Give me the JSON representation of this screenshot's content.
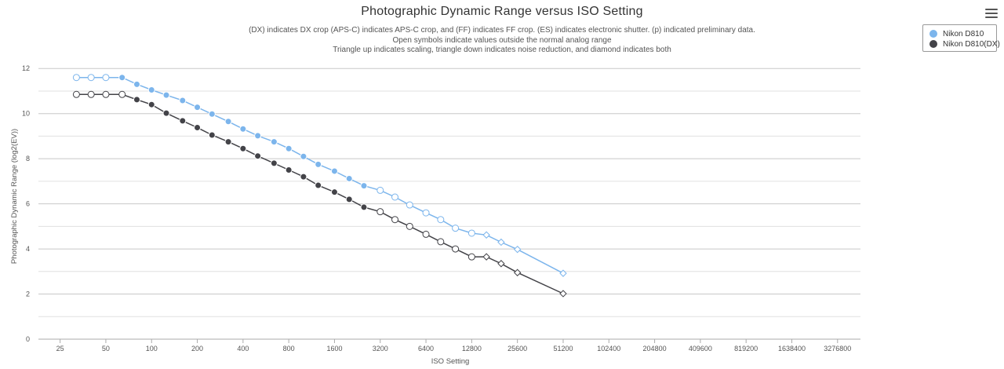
{
  "chart_data": {
    "type": "line",
    "title": "Photographic Dynamic Range versus ISO Setting",
    "subtitle": [
      "(DX) indicates DX crop (APS-C) indicates APS-C crop, and (FF) indicates FF crop. (ES) indicates electronic shutter. (p) indicated preliminary data.",
      "Open symbols indicate values outside the normal analog range",
      "Triangle up indicates scaling, triangle down indicates noise reduction, and diamond indicates both"
    ],
    "xlabel": "ISO Setting",
    "ylabel": "Photographic Dynamic Range (log2(EV))",
    "x_scale": "log2",
    "x_ticks": [
      "25",
      "50",
      "100",
      "200",
      "400",
      "800",
      "1600",
      "3200",
      "6400",
      "12800",
      "25600",
      "51200",
      "102400",
      "204800",
      "409600",
      "819200",
      "1638400",
      "3276800"
    ],
    "xlim": [
      18,
      4637000
    ],
    "ylim": [
      0,
      12.6
    ],
    "y_ticks": [
      "0",
      "2",
      "4",
      "6",
      "8",
      "10",
      "12"
    ],
    "grid": true,
    "legend_position": "top-right",
    "series": [
      {
        "name": "Nikon D810",
        "color": "#7cb5ec",
        "x": [
          32,
          40,
          50,
          64,
          80,
          100,
          125,
          160,
          200,
          250,
          320,
          400,
          500,
          640,
          800,
          1000,
          1250,
          1600,
          2000,
          2500,
          3200,
          4000,
          5000,
          6400,
          8000,
          10000,
          12800,
          16000,
          20000,
          25600,
          51200
        ],
        "y": [
          11.6,
          11.6,
          11.6,
          11.6,
          11.3,
          11.05,
          10.82,
          10.58,
          10.28,
          9.98,
          9.65,
          9.32,
          9.02,
          8.75,
          8.45,
          8.1,
          7.75,
          7.45,
          7.12,
          6.8,
          6.6,
          6.3,
          5.95,
          5.6,
          5.3,
          4.92,
          4.7,
          4.62,
          4.3,
          3.98,
          2.92
        ],
        "markers": [
          "circle-open",
          "circle-open",
          "circle-open",
          "circle",
          "circle",
          "circle",
          "circle",
          "circle",
          "circle",
          "circle",
          "circle",
          "circle",
          "circle",
          "circle",
          "circle",
          "circle",
          "circle",
          "circle",
          "circle",
          "circle",
          "circle-open",
          "circle-open",
          "circle-open",
          "circle-open",
          "circle-open",
          "circle-open",
          "circle-open",
          "diamond-open",
          "diamond-open",
          "diamond-open",
          "diamond-open"
        ]
      },
      {
        "name": "Nikon D810(DX)",
        "color": "#434348",
        "x": [
          32,
          40,
          50,
          64,
          80,
          100,
          125,
          160,
          200,
          250,
          320,
          400,
          500,
          640,
          800,
          1000,
          1250,
          1600,
          2000,
          2500,
          3200,
          4000,
          5000,
          6400,
          8000,
          10000,
          12800,
          16000,
          20000,
          25600,
          51200
        ],
        "y": [
          10.85,
          10.85,
          10.85,
          10.85,
          10.62,
          10.4,
          10.02,
          9.68,
          9.38,
          9.05,
          8.75,
          8.45,
          8.12,
          7.8,
          7.5,
          7.2,
          6.82,
          6.52,
          6.2,
          5.85,
          5.65,
          5.3,
          5.0,
          4.65,
          4.32,
          4.0,
          3.65,
          3.65,
          3.35,
          2.95,
          2.02
        ],
        "markers": [
          "circle-open",
          "circle-open",
          "circle-open",
          "circle-open",
          "circle",
          "circle",
          "circle",
          "circle",
          "circle",
          "circle",
          "circle",
          "circle",
          "circle",
          "circle",
          "circle",
          "circle",
          "circle",
          "circle",
          "circle",
          "circle",
          "circle-open",
          "circle-open",
          "circle-open",
          "circle-open",
          "circle-open",
          "circle-open",
          "circle-open",
          "diamond-open",
          "diamond-open",
          "diamond-open",
          "diamond-open"
        ]
      }
    ]
  }
}
